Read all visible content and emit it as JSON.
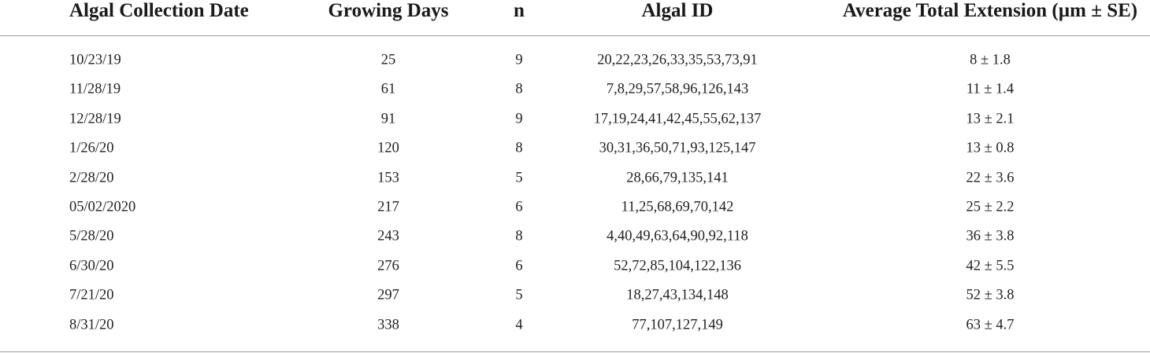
{
  "table": {
    "header": [
      "Algal Collection Date",
      "Growing Days",
      "n",
      "Algal ID",
      "Average Total Extension (µm ± SE)"
    ],
    "rows": [
      [
        "10/23/19",
        "25",
        "9",
        "20,22,23,26,33,35,53,73,91",
        "8 ± 1.8"
      ],
      [
        "11/28/19",
        "61",
        "8",
        "7,8,29,57,58,96,126,143",
        "11 ± 1.4"
      ],
      [
        "12/28/19",
        "91",
        "9",
        "17,19,24,41,42,45,55,62,137",
        "13 ± 2.1"
      ],
      [
        "1/26/20",
        "120",
        "8",
        "30,31,36,50,71,93,125,147",
        "13 ± 0.8"
      ],
      [
        "2/28/20",
        "153",
        "5",
        "28,66,79,135,141",
        "22 ± 3.6"
      ],
      [
        "05/02/2020",
        "217",
        "6",
        "11,25,68,69,70,142",
        "25 ± 2.2"
      ],
      [
        "5/28/20",
        "243",
        "8",
        "4,40,49,63,64,90,92,118",
        "36 ± 3.8"
      ],
      [
        "6/30/20",
        "276",
        "6",
        "52,72,85,104,122,136",
        "42 ± 5.5"
      ],
      [
        "7/21/20",
        "297",
        "5",
        "18,27,43,134,148",
        "52 ± 3.8"
      ],
      [
        "8/31/20",
        "338",
        "4",
        "77,107,127,149",
        "63 ± 4.7"
      ]
    ]
  }
}
